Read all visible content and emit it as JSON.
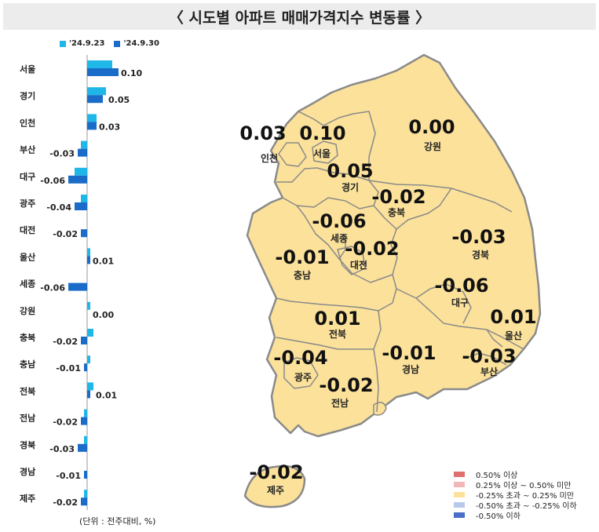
{
  "title": "〈 시도별 아파트 매매가격지수 변동률 〉",
  "unit_label": "(단위 : 전주대비, %)",
  "colors": {
    "prev": "#1fb6e8",
    "curr": "#1a6cc8",
    "land": "#fbe19a",
    "sea_border": "#8a8a8a"
  },
  "chart_data": {
    "type": "bar",
    "orientation": "horizontal",
    "categories": [
      "서울",
      "경기",
      "인천",
      "부산",
      "대구",
      "광주",
      "대전",
      "울산",
      "세종",
      "강원",
      "충북",
      "충남",
      "전북",
      "전남",
      "경북",
      "경남",
      "제주"
    ],
    "series": [
      {
        "name": "'24.9.23",
        "values": [
          0.08,
          0.06,
          0.03,
          -0.02,
          -0.04,
          -0.02,
          0.0,
          0.01,
          0.0,
          0.01,
          0.02,
          0.01,
          0.02,
          -0.01,
          -0.01,
          0.0,
          -0.01
        ]
      },
      {
        "name": "'24.9.30",
        "values": [
          0.1,
          0.05,
          0.03,
          -0.03,
          -0.06,
          -0.04,
          -0.02,
          0.01,
          -0.06,
          0.0,
          -0.02,
          -0.01,
          0.01,
          -0.02,
          -0.03,
          -0.01,
          -0.02
        ]
      }
    ],
    "value_labels": [
      "0.10",
      "0.05",
      "0.03",
      "-0.03",
      "-0.06",
      "-0.04",
      "-0.02",
      "0.01",
      "-0.06",
      "0.00",
      "-0.02",
      "-0.01",
      "0.01",
      "-0.02",
      "-0.03",
      "-0.01",
      "-0.02"
    ]
  },
  "map": {
    "regions": [
      {
        "name": "인천",
        "value": "0.03"
      },
      {
        "name": "서울",
        "value": "0.10"
      },
      {
        "name": "강원",
        "value": "0.00"
      },
      {
        "name": "경기",
        "value": "0.05"
      },
      {
        "name": "충북",
        "value": "-0.02"
      },
      {
        "name": "세종",
        "value": "-0.06"
      },
      {
        "name": "경북",
        "value": "-0.03"
      },
      {
        "name": "충남",
        "value": "-0.01"
      },
      {
        "name": "대전",
        "value": "-0.02"
      },
      {
        "name": "대구",
        "value": "-0.06"
      },
      {
        "name": "전북",
        "value": "0.01"
      },
      {
        "name": "울산",
        "value": "0.01"
      },
      {
        "name": "광주",
        "value": "-0.04"
      },
      {
        "name": "경남",
        "value": "-0.01"
      },
      {
        "name": "부산",
        "value": "-0.03"
      },
      {
        "name": "전남",
        "value": "-0.02"
      },
      {
        "name": "제주",
        "value": "-0.02"
      }
    ],
    "legend": [
      {
        "label": "0.50% 이상",
        "color": "#e07070"
      },
      {
        "label": "0.25% 이상 ~ 0.50% 미만",
        "color": "#f2b8b8"
      },
      {
        "label": "-0.25% 초과 ~ 0.25% 미만",
        "color": "#fbe19a"
      },
      {
        "label": "-0.50% 초과 ~ -0.25% 이하",
        "color": "#b8c8e8"
      },
      {
        "label": "-0.50% 이하",
        "color": "#4a6fc8"
      }
    ]
  }
}
